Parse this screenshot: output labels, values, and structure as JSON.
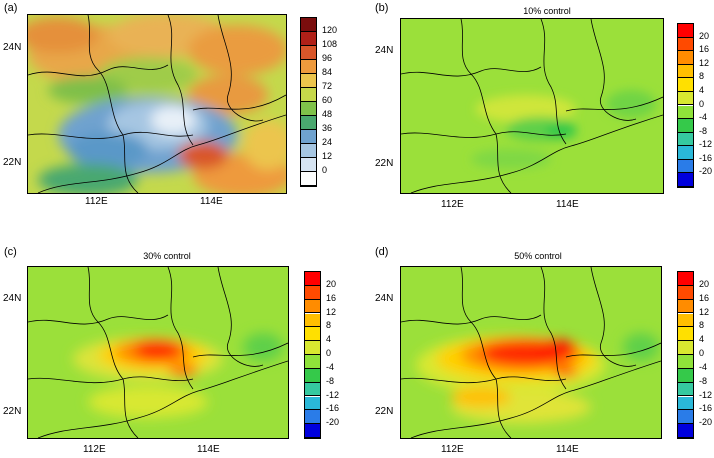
{
  "chart_data": [
    {
      "type": "heatmap",
      "panel_label": "(a)",
      "title": "",
      "x_ticks": [
        "112E",
        "114E"
      ],
      "y_ticks": [
        "24N",
        "22N"
      ],
      "colorbar": {
        "labels": [
          "0",
          "12",
          "24",
          "36",
          "48",
          "60",
          "72",
          "84",
          "96",
          "108",
          "120"
        ],
        "colors": [
          "#fdfefe",
          "#d6e4f2",
          "#a6c6e2",
          "#6fa2cf",
          "#4aa86f",
          "#7fc24a",
          "#c6d84a",
          "#ecc54d",
          "#ee9a3d",
          "#d9562a",
          "#b02018",
          "#7a0d0d"
        ]
      }
    },
    {
      "type": "heatmap",
      "panel_label": "(b)",
      "title": "10% control",
      "x_ticks": [
        "112E",
        "114E"
      ],
      "y_ticks": [
        "24N",
        "22N"
      ],
      "colorbar": {
        "labels": [
          "20",
          "16",
          "12",
          "8",
          "4",
          "0",
          "-4",
          "-8",
          "-12",
          "-16",
          "-20"
        ],
        "colors": [
          "#ff0000",
          "#ff4a00",
          "#ff8c00",
          "#ffbf00",
          "#ffe000",
          "#d8e830",
          "#8fe23a",
          "#35c94a",
          "#35c9a0",
          "#2ab8d8",
          "#2a7ce8",
          "#0000dd"
        ]
      }
    },
    {
      "type": "heatmap",
      "panel_label": "(c)",
      "title": "30% control",
      "x_ticks": [
        "112E",
        "114E"
      ],
      "y_ticks": [
        "24N",
        "22N"
      ],
      "colorbar": {
        "labels": [
          "20",
          "16",
          "12",
          "8",
          "4",
          "0",
          "-4",
          "-8",
          "-12",
          "-16",
          "-20"
        ],
        "colors": [
          "#ff0000",
          "#ff4a00",
          "#ff8c00",
          "#ffbf00",
          "#ffe000",
          "#d8e830",
          "#8fe23a",
          "#35c94a",
          "#35c9a0",
          "#2ab8d8",
          "#2a7ce8",
          "#0000dd"
        ]
      }
    },
    {
      "type": "heatmap",
      "panel_label": "(d)",
      "title": "50% control",
      "x_ticks": [
        "112E",
        "114E"
      ],
      "y_ticks": [
        "24N",
        "22N"
      ],
      "colorbar": {
        "labels": [
          "20",
          "16",
          "12",
          "8",
          "4",
          "0",
          "-4",
          "-8",
          "-12",
          "-16",
          "-20"
        ],
        "colors": [
          "#ff0000",
          "#ff4a00",
          "#ff8c00",
          "#ffbf00",
          "#ffe000",
          "#d8e830",
          "#8fe23a",
          "#35c94a",
          "#35c9a0",
          "#2ab8d8",
          "#2a7ce8",
          "#0000dd"
        ]
      }
    }
  ]
}
